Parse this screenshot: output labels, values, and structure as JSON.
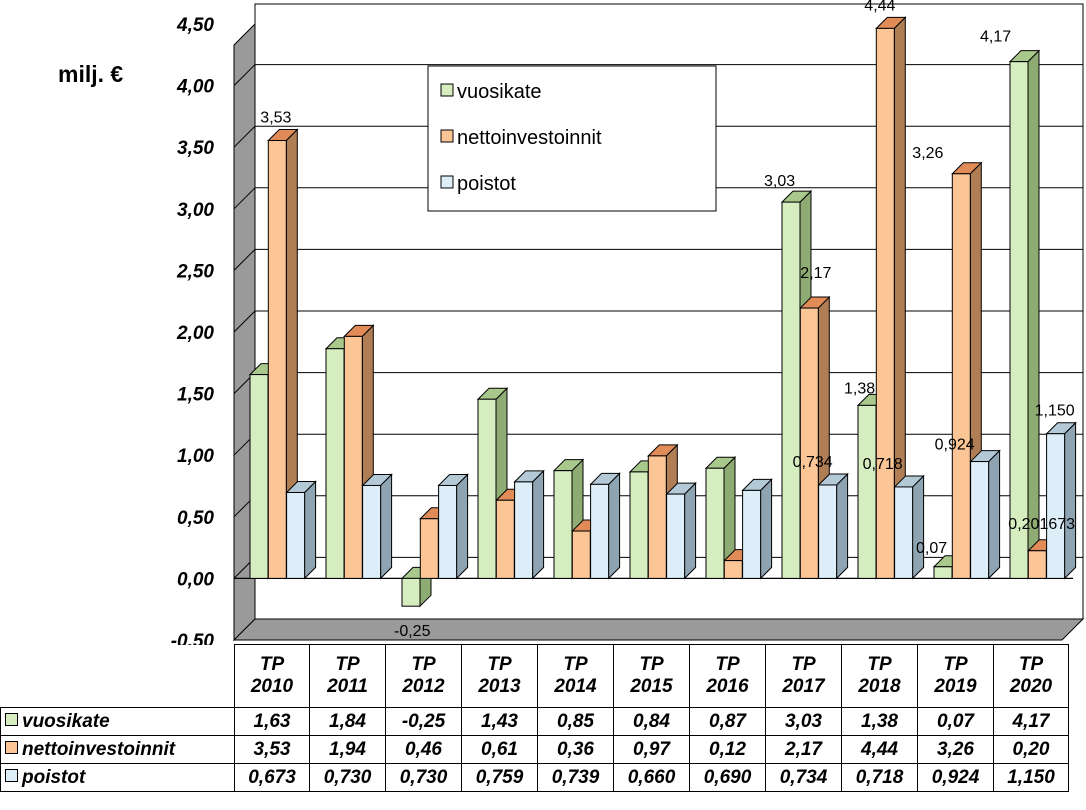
{
  "chart_data": {
    "type": "bar",
    "ylabel": "milj. €",
    "ylim": [
      -0.5,
      4.5
    ],
    "ytick_labels": [
      "4,50",
      "4,00",
      "3,50",
      "3,00",
      "2,50",
      "2,00",
      "1,50",
      "1,00",
      "0,50",
      "0,00",
      "-0,50"
    ],
    "categories": [
      "TP 2010",
      "TP 2011",
      "TP 2012",
      "TP 2013",
      "TP 2014",
      "TP 2015",
      "TP 2016",
      "TP 2017",
      "TP 2018",
      "TP 2019",
      "TP 2020"
    ],
    "series": [
      {
        "name": "vuosikate",
        "color": "#d6edc0",
        "side": "#8fab74",
        "top": "#a9c88c",
        "values": [
          1.63,
          1.84,
          -0.25,
          1.43,
          0.85,
          0.84,
          0.87,
          3.03,
          1.38,
          0.07,
          4.17
        ],
        "table_values": [
          "1,63",
          "1,84",
          "-0,25",
          "1,43",
          "0,85",
          "0,84",
          "0,87",
          "3,03",
          "1,38",
          "0,07",
          "4,17"
        ]
      },
      {
        "name": "nettoinvestoinnit",
        "color": "#fbc596",
        "side": "#b07e55",
        "top": "#e08b58",
        "values": [
          3.53,
          1.94,
          0.46,
          0.61,
          0.36,
          0.97,
          0.12,
          2.17,
          4.44,
          3.26,
          0.2
        ],
        "table_values": [
          "3,53",
          "1,94",
          "0,46",
          "0,61",
          "0,36",
          "0,97",
          "0,12",
          "2,17",
          "4,44",
          "3,26",
          "0,20"
        ]
      },
      {
        "name": "poistot",
        "color": "#ddeef8",
        "side": "#8fa4b2",
        "top": "#b4c9d6",
        "values": [
          0.673,
          0.73,
          0.73,
          0.759,
          0.739,
          0.66,
          0.69,
          0.734,
          0.718,
          0.924,
          1.15
        ],
        "table_values": [
          "0,673",
          "0,730",
          "0,730",
          "0,759",
          "0,739",
          "0,660",
          "0,690",
          "0,734",
          "0,718",
          "0,924",
          "1,150"
        ]
      }
    ],
    "data_labels": [
      {
        "series": 1,
        "index": 0,
        "text": "3,53"
      },
      {
        "series": 0,
        "index": 2,
        "text": "-0,25"
      },
      {
        "series": 0,
        "index": 7,
        "text": "3,03"
      },
      {
        "series": 1,
        "index": 7,
        "text": "2,17"
      },
      {
        "series": 2,
        "index": 7,
        "text": "0,734"
      },
      {
        "series": 0,
        "index": 8,
        "text": "1,38"
      },
      {
        "series": 1,
        "index": 8,
        "text": "4,44"
      },
      {
        "series": 2,
        "index": 8,
        "text": "0,718"
      },
      {
        "series": 0,
        "index": 9,
        "text": "0,07"
      },
      {
        "series": 1,
        "index": 9,
        "text": "3,26"
      },
      {
        "series": 2,
        "index": 9,
        "text": "0,924"
      },
      {
        "series": 0,
        "index": 10,
        "text": "4,17"
      },
      {
        "series": 1,
        "index": 10,
        "text": "0,201673"
      },
      {
        "series": 2,
        "index": 10,
        "text": "1,150"
      }
    ],
    "legend": {
      "position": "top-center-inside",
      "entries": [
        "vuosikate",
        "nettoinvestoinnit",
        "poistot"
      ]
    },
    "grid": true,
    "data_table": true
  },
  "table": {
    "header_top": [
      "TP",
      "TP",
      "TP",
      "TP",
      "TP",
      "TP",
      "TP",
      "TP",
      "TP",
      "TP",
      "TP"
    ],
    "header_bottom": [
      "2010",
      "2011",
      "2012",
      "2013",
      "2014",
      "2015",
      "2016",
      "2017",
      "2018",
      "2019",
      "2020"
    ],
    "rows": [
      {
        "label": "vuosikate",
        "color": "#d6edc0",
        "cells": [
          "1,63",
          "1,84",
          "-0,25",
          "1,43",
          "0,85",
          "0,84",
          "0,87",
          "3,03",
          "1,38",
          "0,07",
          "4,17"
        ]
      },
      {
        "label": "nettoinvestoinnit",
        "color": "#fbc596",
        "cells": [
          "3,53",
          "1,94",
          "0,46",
          "0,61",
          "0,36",
          "0,97",
          "0,12",
          "2,17",
          "4,44",
          "3,26",
          "0,20"
        ]
      },
      {
        "label": "poistot",
        "color": "#ddeef8",
        "cells": [
          "0,673",
          "0,730",
          "0,730",
          "0,759",
          "0,739",
          "0,660",
          "0,690",
          "0,734",
          "0,718",
          "0,924",
          "1,150"
        ]
      }
    ]
  }
}
